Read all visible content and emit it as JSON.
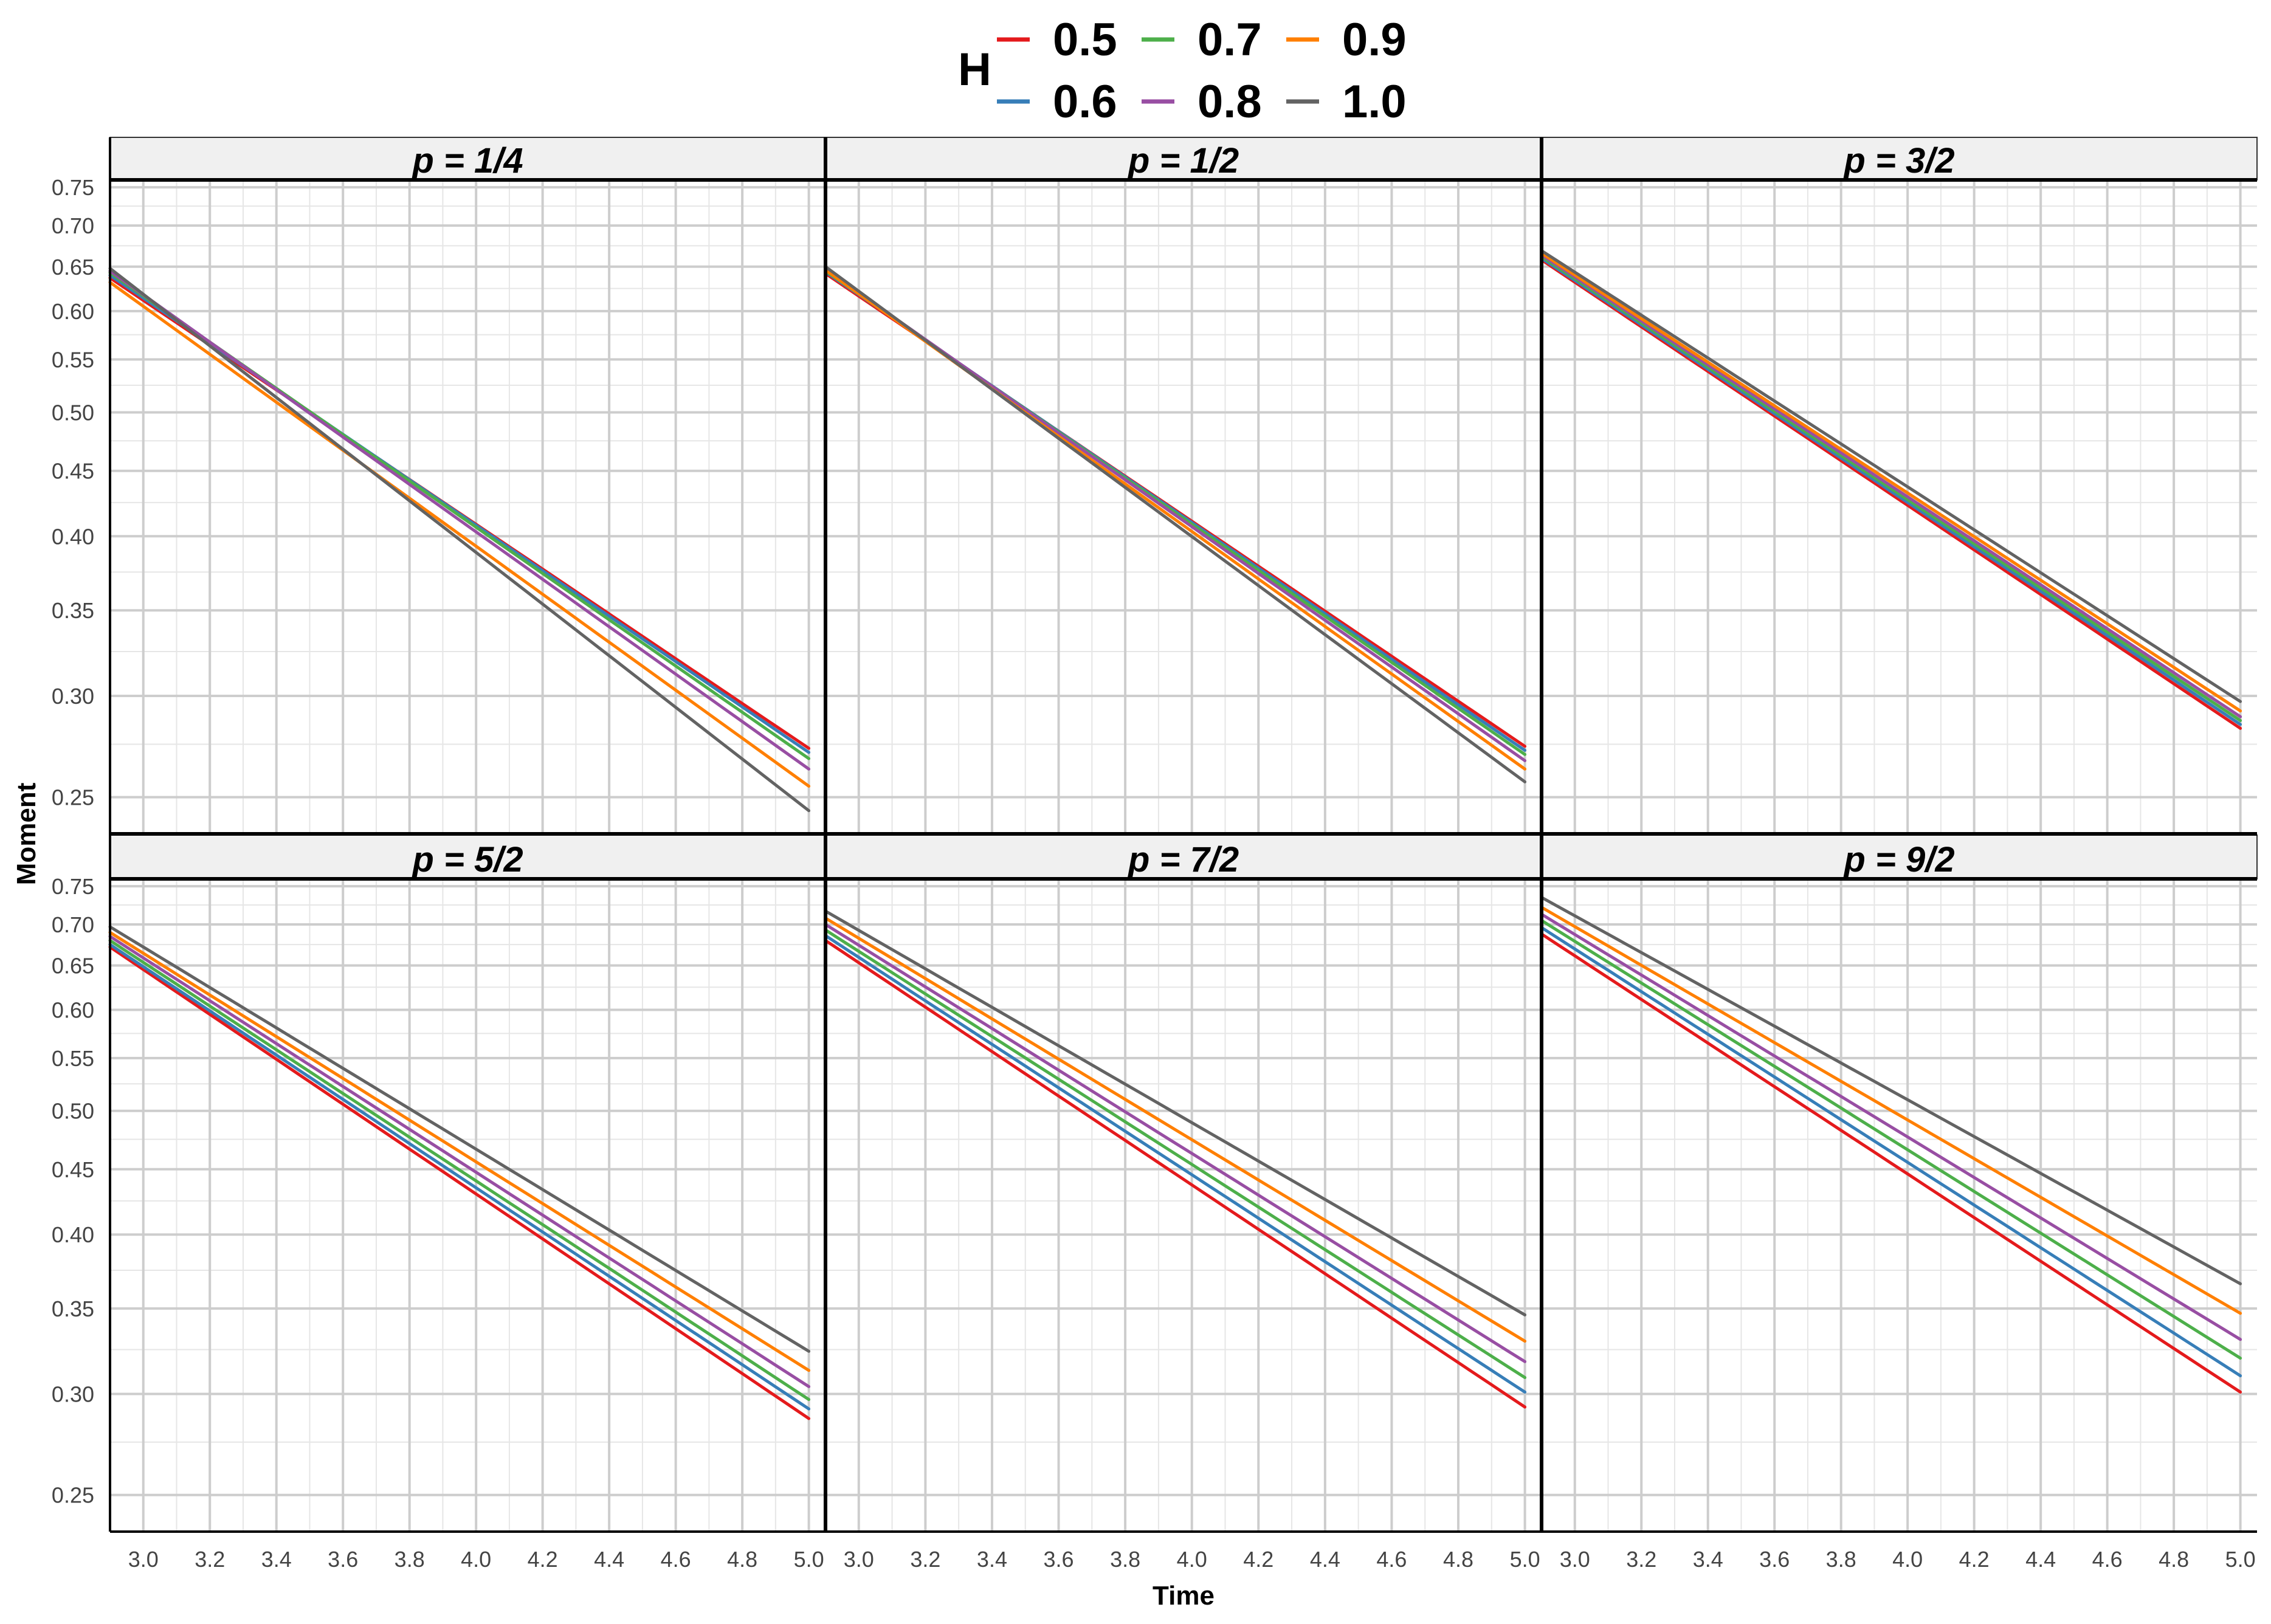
{
  "chart_data": {
    "type": "line",
    "ylabel": "Moment",
    "xlabel": "Time",
    "legend": {
      "title": "H",
      "position": "top",
      "entries": [
        {
          "label": "0.5",
          "color": "#e41a1c"
        },
        {
          "label": "0.6",
          "color": "#377eb8"
        },
        {
          "label": "0.7",
          "color": "#4daf4a"
        },
        {
          "label": "0.8",
          "color": "#984ea3"
        },
        {
          "label": "0.9",
          "color": "#ff7f00"
        },
        {
          "label": "1.0",
          "color": "#636363"
        }
      ]
    },
    "x_axis": {
      "range": [
        2.9,
        5.05
      ],
      "ticks": [
        "3.0",
        "3.2",
        "3.4",
        "3.6",
        "3.8",
        "4.0",
        "4.2",
        "4.4",
        "4.6",
        "4.8",
        "5.0"
      ]
    },
    "y_axis": {
      "scale": "log",
      "range": [
        0.234,
        0.76
      ],
      "ticks": [
        "0.25",
        "0.30",
        "0.35",
        "0.40",
        "0.45",
        "0.50",
        "0.55",
        "0.60",
        "0.65",
        "0.70",
        "0.75"
      ]
    },
    "grid": true,
    "panels": [
      {
        "title": "p = 1/4",
        "series": [
          {
            "name": "0.5",
            "x": [
              2.9,
              5.0
            ],
            "y": [
              0.637,
              0.273
            ]
          },
          {
            "name": "0.6",
            "x": [
              2.9,
              5.0
            ],
            "y": [
              0.64,
              0.271
            ]
          },
          {
            "name": "0.7",
            "x": [
              2.9,
              5.0
            ],
            "y": [
              0.643,
              0.268
            ]
          },
          {
            "name": "0.8",
            "x": [
              2.9,
              5.0
            ],
            "y": [
              0.645,
              0.263
            ]
          },
          {
            "name": "0.9",
            "x": [
              2.9,
              5.0
            ],
            "y": [
              0.632,
              0.255
            ]
          },
          {
            "name": "1.0",
            "x": [
              2.9,
              5.0
            ],
            "y": [
              0.648,
              0.244
            ]
          }
        ]
      },
      {
        "title": "p = 1/2",
        "series": [
          {
            "name": "0.5",
            "x": [
              2.9,
              5.0
            ],
            "y": [
              0.642,
              0.274
            ]
          },
          {
            "name": "0.6",
            "x": [
              2.9,
              5.0
            ],
            "y": [
              0.644,
              0.272
            ]
          },
          {
            "name": "0.7",
            "x": [
              2.9,
              5.0
            ],
            "y": [
              0.645,
              0.27
            ]
          },
          {
            "name": "0.8",
            "x": [
              2.9,
              5.0
            ],
            "y": [
              0.647,
              0.267
            ]
          },
          {
            "name": "0.9",
            "x": [
              2.9,
              5.0
            ],
            "y": [
              0.646,
              0.263
            ]
          },
          {
            "name": "1.0",
            "x": [
              2.9,
              5.0
            ],
            "y": [
              0.65,
              0.257
            ]
          }
        ]
      },
      {
        "title": "p = 3/2",
        "series": [
          {
            "name": "0.5",
            "x": [
              2.9,
              5.0
            ],
            "y": [
              0.658,
              0.283
            ]
          },
          {
            "name": "0.6",
            "x": [
              2.9,
              5.0
            ],
            "y": [
              0.66,
              0.285
            ]
          },
          {
            "name": "0.7",
            "x": [
              2.9,
              5.0
            ],
            "y": [
              0.662,
              0.287
            ]
          },
          {
            "name": "0.8",
            "x": [
              2.9,
              5.0
            ],
            "y": [
              0.664,
              0.289
            ]
          },
          {
            "name": "0.9",
            "x": [
              2.9,
              5.0
            ],
            "y": [
              0.666,
              0.292
            ]
          },
          {
            "name": "1.0",
            "x": [
              2.9,
              5.0
            ],
            "y": [
              0.669,
              0.297
            ]
          }
        ]
      },
      {
        "title": "p = 5/2",
        "series": [
          {
            "name": "0.5",
            "x": [
              2.9,
              5.0
            ],
            "y": [
              0.672,
              0.287
            ]
          },
          {
            "name": "0.6",
            "x": [
              2.9,
              5.0
            ],
            "y": [
              0.675,
              0.292
            ]
          },
          {
            "name": "0.7",
            "x": [
              2.9,
              5.0
            ],
            "y": [
              0.68,
              0.297
            ]
          },
          {
            "name": "0.8",
            "x": [
              2.9,
              5.0
            ],
            "y": [
              0.685,
              0.304
            ]
          },
          {
            "name": "0.9",
            "x": [
              2.9,
              5.0
            ],
            "y": [
              0.69,
              0.313
            ]
          },
          {
            "name": "1.0",
            "x": [
              2.9,
              5.0
            ],
            "y": [
              0.697,
              0.324
            ]
          }
        ]
      },
      {
        "title": "p = 7/2",
        "series": [
          {
            "name": "0.5",
            "x": [
              2.9,
              5.0
            ],
            "y": [
              0.68,
              0.293
            ]
          },
          {
            "name": "0.6",
            "x": [
              2.9,
              5.0
            ],
            "y": [
              0.686,
              0.301
            ]
          },
          {
            "name": "0.7",
            "x": [
              2.9,
              5.0
            ],
            "y": [
              0.693,
              0.309
            ]
          },
          {
            "name": "0.8",
            "x": [
              2.9,
              5.0
            ],
            "y": [
              0.7,
              0.318
            ]
          },
          {
            "name": "0.9",
            "x": [
              2.9,
              5.0
            ],
            "y": [
              0.708,
              0.33
            ]
          },
          {
            "name": "1.0",
            "x": [
              2.9,
              5.0
            ],
            "y": [
              0.717,
              0.346
            ]
          }
        ]
      },
      {
        "title": "p = 9/2",
        "series": [
          {
            "name": "0.5",
            "x": [
              2.9,
              5.0
            ],
            "y": [
              0.688,
              0.301
            ]
          },
          {
            "name": "0.6",
            "x": [
              2.9,
              5.0
            ],
            "y": [
              0.696,
              0.31
            ]
          },
          {
            "name": "0.7",
            "x": [
              2.9,
              5.0
            ],
            "y": [
              0.705,
              0.32
            ]
          },
          {
            "name": "0.8",
            "x": [
              2.9,
              5.0
            ],
            "y": [
              0.713,
              0.331
            ]
          },
          {
            "name": "0.9",
            "x": [
              2.9,
              5.0
            ],
            "y": [
              0.722,
              0.347
            ]
          },
          {
            "name": "1.0",
            "x": [
              2.9,
              5.0
            ],
            "y": [
              0.735,
              0.366
            ]
          }
        ]
      }
    ]
  }
}
